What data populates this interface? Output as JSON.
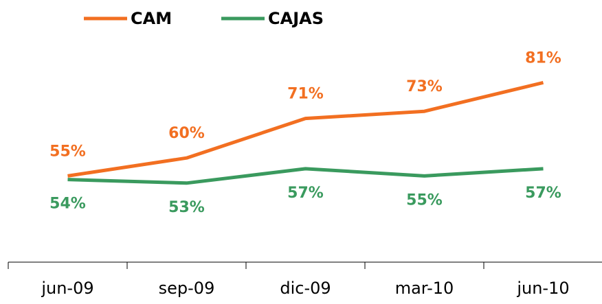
{
  "chart_data": {
    "type": "line",
    "categories": [
      "jun-09",
      "sep-09",
      "dic-09",
      "mar-10",
      "jun-10"
    ],
    "series": [
      {
        "name": "CAM",
        "color": "#f26f21",
        "values": [
          55,
          60,
          71,
          73,
          81
        ],
        "value_labels": [
          "55%",
          "60%",
          "71%",
          "73%",
          "81%"
        ]
      },
      {
        "name": "CAJAS",
        "color": "#3a9a5e",
        "values": [
          54,
          53,
          57,
          55,
          57
        ],
        "value_labels": [
          "54%",
          "53%",
          "57%",
          "55%",
          "57%"
        ]
      }
    ],
    "legend": "top"
  }
}
